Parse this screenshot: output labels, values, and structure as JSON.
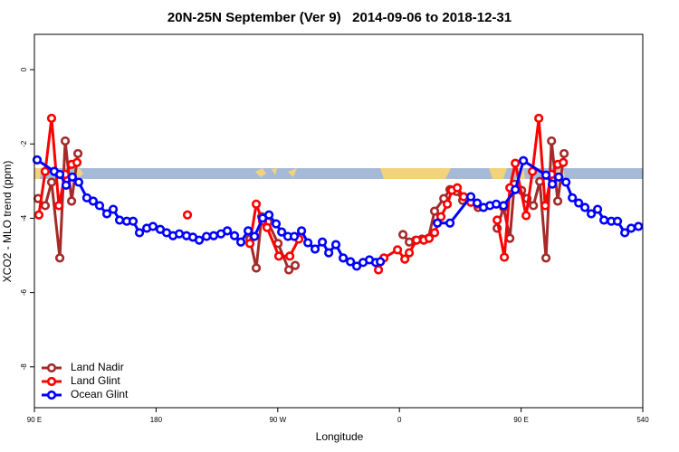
{
  "chart_data": {
    "type": "line",
    "title": "20N-25N September (Ver 9)   2014-09-06 to 2018-12-31",
    "x_label": "Longitude",
    "y_label": "XCO2 - MLO trend (ppm)",
    "xlim": [
      90,
      540
    ],
    "ylim": [
      -9.1,
      0.95
    ],
    "xticks": [
      {
        "value": 90,
        "label": "90 E"
      },
      180,
      {
        "value": 270,
        "label": "90 W"
      },
      {
        "value": 360,
        "label": "0"
      },
      {
        "value": 450,
        "label": "90 E"
      },
      540
    ],
    "yticks": [
      0,
      -2,
      -4,
      -6,
      -8
    ],
    "legend": "bottom-left",
    "series": [
      {
        "name": "Land Nadir",
        "color": "#a52a2a",
        "x": [
          92.7,
          98.0,
          102.7,
          108.8,
          112.8,
          117.5,
          122.2,
          null,
          249.4,
          254.1,
          258.1,
          262.8,
          270.2,
          278.2,
          282.9,
          null,
          362.6,
          367.3,
          372.0,
          376.7,
          381.4,
          386.0,
          392.8,
          397.4,
          402.1,
          406.8,
          411.5,
          418.2,
          null,
          432.3,
          437.0,
          441.7,
          445.0,
          450.4,
          454.4,
          459.1,
          463.8,
          468.4,
          472.5,
          477.1,
          481.8
        ],
        "values": [
          -3.47,
          -3.66,
          -3.03,
          -5.07,
          -1.92,
          -3.54,
          -2.26,
          null,
          -4.56,
          -5.34,
          -3.96,
          -4.1,
          -4.68,
          -5.39,
          -5.27,
          null,
          -4.44,
          -4.64,
          -4.59,
          -4.56,
          -4.54,
          -3.81,
          -3.47,
          -3.23,
          -3.28,
          -3.52,
          -3.45,
          -3.71,
          null,
          -4.27,
          -3.71,
          -4.54,
          -3.08,
          -3.25,
          -3.47,
          -3.66,
          -3.01,
          -5.07,
          -1.92,
          -3.54,
          -2.26
        ]
      },
      {
        "name": "Land Glint",
        "color": "#ff0000",
        "x": [
          93.3,
          98.0,
          102.7,
          108.1,
          112.8,
          117.5,
          121.5,
          null,
          203.2,
          null,
          249.4,
          254.1,
          258.8,
          262.1,
          270.8,
          278.9,
          285.6,
          null,
          344.5,
          348.5,
          358.6,
          364.0,
          367.3,
          372.7,
          378.0,
          382.0,
          386.0,
          390.7,
          395.4,
          398.8,
          402.8,
          407.5,
          412.8,
          417.5,
          null,
          432.3,
          437.6,
          441.7,
          445.7,
          453.7,
          458.4,
          463.1,
          467.8,
          472.5,
          477.1,
          481.2
        ],
        "values": [
          -3.91,
          -2.74,
          -1.31,
          -3.66,
          -2.82,
          -2.55,
          -2.5,
          null,
          -3.91,
          null,
          -4.68,
          -3.62,
          -4.08,
          -4.25,
          -5.02,
          -5.02,
          -4.56,
          null,
          -5.39,
          -5.07,
          -4.85,
          -5.1,
          -4.93,
          -4.59,
          -4.59,
          -4.54,
          -4.39,
          -3.96,
          -3.62,
          -3.25,
          -3.18,
          -3.42,
          -3.57,
          -3.62,
          null,
          -4.05,
          -5.05,
          -3.18,
          -2.52,
          -3.93,
          -2.74,
          -1.31,
          -3.66,
          -2.82,
          -2.55,
          -2.5
        ]
      },
      {
        "name": "Ocean Glint",
        "color": "#0000ff",
        "x": [
          92.0,
          104.7,
          108.8,
          113.4,
          118.1,
          122.8,
          128.8,
          133.5,
          138.2,
          143.6,
          148.3,
          153.0,
          158.3,
          163.0,
          167.7,
          173.1,
          177.7,
          183.1,
          187.8,
          192.5,
          197.2,
          202.5,
          207.2,
          211.9,
          217.3,
          222.6,
          228.0,
          232.7,
          238.0,
          242.7,
          248.1,
          252.8,
          258.8,
          263.5,
          268.8,
          272.9,
          277.5,
          282.2,
          287.6,
          292.3,
          297.6,
          303.0,
          307.7,
          313.0,
          318.4,
          323.8,
          328.4,
          333.1,
          337.8,
          342.5,
          345.9,
          null,
          388.1,
          397.4,
          412.8,
          417.5,
          422.2,
          426.9,
          431.6,
          437.0,
          445.7,
          451.7,
          468.4,
          473.1,
          477.8,
          483.2,
          487.9,
          492.6,
          497.2,
          501.9,
          506.6,
          511.3,
          516.7,
          521.3,
          526.7,
          531.4,
          536.8
        ],
        "values": [
          -2.43,
          -2.74,
          -2.82,
          -3.11,
          -2.89,
          -3.03,
          -3.45,
          -3.54,
          -3.66,
          -3.88,
          -3.76,
          -4.05,
          -4.08,
          -4.08,
          -4.39,
          -4.27,
          -4.22,
          -4.3,
          -4.39,
          -4.47,
          -4.42,
          -4.47,
          -4.51,
          -4.59,
          -4.49,
          -4.47,
          -4.42,
          -4.34,
          -4.47,
          -4.64,
          -4.34,
          -4.49,
          -4.0,
          -3.91,
          -4.15,
          -4.37,
          -4.49,
          -4.49,
          -4.34,
          -4.66,
          -4.83,
          -4.64,
          -4.93,
          -4.71,
          -5.07,
          -5.17,
          -5.29,
          -5.19,
          -5.12,
          -5.19,
          -5.17,
          null,
          -4.13,
          -4.13,
          -3.42,
          -3.59,
          -3.71,
          -3.66,
          -3.62,
          -3.66,
          -3.23,
          -2.45,
          -2.84,
          -3.08,
          -2.89,
          -3.03,
          -3.45,
          -3.59,
          -3.71,
          -3.88,
          -3.76,
          -4.05,
          -4.08,
          -4.08,
          -4.39,
          -4.27,
          -4.22
        ]
      }
    ]
  }
}
